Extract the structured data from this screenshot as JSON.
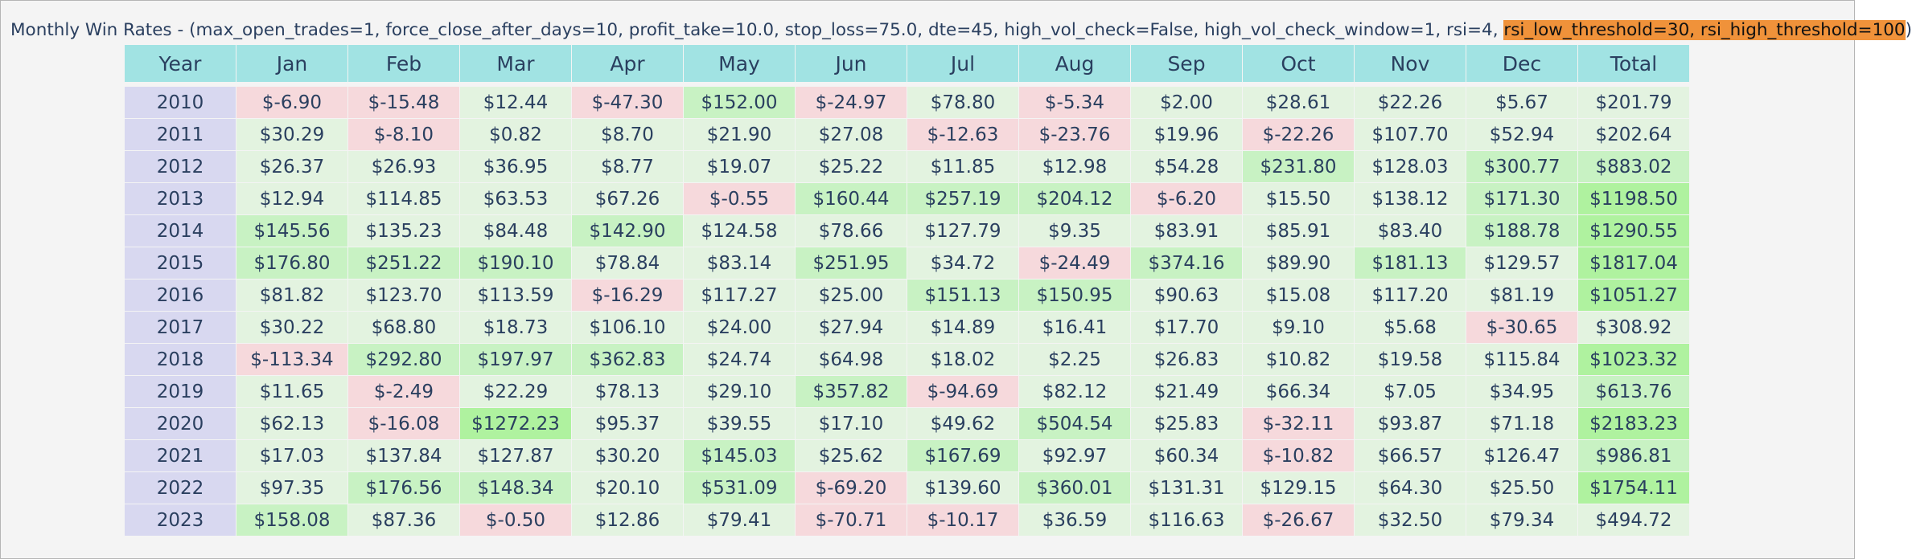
{
  "title": {
    "main": "Monthly Win Rates - (max_open_trades=1, force_close_after_days=10, profit_take=10.0, stop_loss=75.0, dte=45, high_vol_check=False, high_vol_check_window=1, rsi=4, ",
    "highlight": "rsi_low_threshold=30, rsi_high_threshold=100",
    "suffix": ")"
  },
  "colors": {
    "header": "#a1e3e3",
    "year": "#d8d8f0",
    "negative": "#f6d9dc",
    "positive_light": "#e3f3e0",
    "positive_mid": "#c8f2c3",
    "positive_strong": "#aff29f",
    "highlight": "#f0923a"
  },
  "chart_data": {
    "type": "table",
    "columns": [
      "Year",
      "Jan",
      "Feb",
      "Mar",
      "Apr",
      "May",
      "Jun",
      "Jul",
      "Aug",
      "Sep",
      "Oct",
      "Nov",
      "Dec",
      "Total"
    ],
    "rows": [
      [
        "2010",
        "$-6.90",
        "$-15.48",
        "$12.44",
        "$-47.30",
        "$152.00",
        "$-24.97",
        "$78.80",
        "$-5.34",
        "$2.00",
        "$28.61",
        "$22.26",
        "$5.67",
        "$201.79"
      ],
      [
        "2011",
        "$30.29",
        "$-8.10",
        "$0.82",
        "$8.70",
        "$21.90",
        "$27.08",
        "$-12.63",
        "$-23.76",
        "$19.96",
        "$-22.26",
        "$107.70",
        "$52.94",
        "$202.64"
      ],
      [
        "2012",
        "$26.37",
        "$26.93",
        "$36.95",
        "$8.77",
        "$19.07",
        "$25.22",
        "$11.85",
        "$12.98",
        "$54.28",
        "$231.80",
        "$128.03",
        "$300.77",
        "$883.02"
      ],
      [
        "2013",
        "$12.94",
        "$114.85",
        "$63.53",
        "$67.26",
        "$-0.55",
        "$160.44",
        "$257.19",
        "$204.12",
        "$-6.20",
        "$15.50",
        "$138.12",
        "$171.30",
        "$1198.50"
      ],
      [
        "2014",
        "$145.56",
        "$135.23",
        "$84.48",
        "$142.90",
        "$124.58",
        "$78.66",
        "$127.79",
        "$9.35",
        "$83.91",
        "$85.91",
        "$83.40",
        "$188.78",
        "$1290.55"
      ],
      [
        "2015",
        "$176.80",
        "$251.22",
        "$190.10",
        "$78.84",
        "$83.14",
        "$251.95",
        "$34.72",
        "$-24.49",
        "$374.16",
        "$89.90",
        "$181.13",
        "$129.57",
        "$1817.04"
      ],
      [
        "2016",
        "$81.82",
        "$123.70",
        "$113.59",
        "$-16.29",
        "$117.27",
        "$25.00",
        "$151.13",
        "$150.95",
        "$90.63",
        "$15.08",
        "$117.20",
        "$81.19",
        "$1051.27"
      ],
      [
        "2017",
        "$30.22",
        "$68.80",
        "$18.73",
        "$106.10",
        "$24.00",
        "$27.94",
        "$14.89",
        "$16.41",
        "$17.70",
        "$9.10",
        "$5.68",
        "$-30.65",
        "$308.92"
      ],
      [
        "2018",
        "$-113.34",
        "$292.80",
        "$197.97",
        "$362.83",
        "$24.74",
        "$64.98",
        "$18.02",
        "$2.25",
        "$26.83",
        "$10.82",
        "$19.58",
        "$115.84",
        "$1023.32"
      ],
      [
        "2019",
        "$11.65",
        "$-2.49",
        "$22.29",
        "$78.13",
        "$29.10",
        "$357.82",
        "$-94.69",
        "$82.12",
        "$21.49",
        "$66.34",
        "$7.05",
        "$34.95",
        "$613.76"
      ],
      [
        "2020",
        "$62.13",
        "$-16.08",
        "$1272.23",
        "$95.37",
        "$39.55",
        "$17.10",
        "$49.62",
        "$504.54",
        "$25.83",
        "$-32.11",
        "$93.87",
        "$71.18",
        "$2183.23"
      ],
      [
        "2021",
        "$17.03",
        "$137.84",
        "$127.87",
        "$30.20",
        "$145.03",
        "$25.62",
        "$167.69",
        "$92.97",
        "$60.34",
        "$-10.82",
        "$66.57",
        "$126.47",
        "$986.81"
      ],
      [
        "2022",
        "$97.35",
        "$176.56",
        "$148.34",
        "$20.10",
        "$531.09",
        "$-69.20",
        "$139.60",
        "$360.01",
        "$131.31",
        "$129.15",
        "$64.30",
        "$25.50",
        "$1754.11"
      ],
      [
        "2023",
        "$158.08",
        "$87.36",
        "$-0.50",
        "$12.86",
        "$79.41",
        "$-70.71",
        "$-10.17",
        "$36.59",
        "$116.63",
        "$-26.67",
        "$32.50",
        "$79.34",
        "$494.72"
      ]
    ]
  }
}
